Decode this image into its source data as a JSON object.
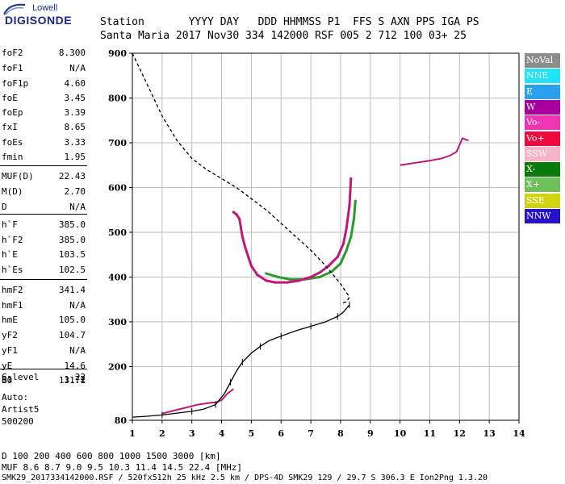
{
  "logo": {
    "top": "Lowell",
    "main": "DIGISONDE"
  },
  "header": {
    "line1": "Station       YYYY DAY   DDD HHMMSS P1  FFS S AXN PPS IGA PS",
    "line2": "Santa Maria 2017 Nov30 334 142000 RSF 005 2 712 100 03+ 25"
  },
  "params": [
    {
      "label": "foF2",
      "value": "8.300"
    },
    {
      "label": "foF1",
      "value": "N/A"
    },
    {
      "label": "foF1p",
      "value": "4.60"
    },
    {
      "label": "foE",
      "value": "3.45"
    },
    {
      "label": "foEp",
      "value": "3.39"
    },
    {
      "label": "fxI",
      "value": "8.65"
    },
    {
      "label": "foEs",
      "value": "3.33"
    },
    {
      "label": "fmin",
      "value": "1.95"
    },
    {
      "label": "MUF(D)",
      "value": "22.43"
    },
    {
      "label": "M(D)",
      "value": "2.70"
    },
    {
      "label": "D",
      "value": "N/A"
    },
    {
      "label": "h`F",
      "value": "385.0"
    },
    {
      "label": "h`F2",
      "value": "385.0"
    },
    {
      "label": "h`E",
      "value": "103.5"
    },
    {
      "label": "h`Es",
      "value": "102.5"
    },
    {
      "label": "hmF2",
      "value": "341.4"
    },
    {
      "label": "hmF1",
      "value": "N/A"
    },
    {
      "label": "hmE",
      "value": "105.0"
    },
    {
      "label": "yF2",
      "value": "104.7"
    },
    {
      "label": "yF1",
      "value": "N/A"
    },
    {
      "label": "yE",
      "value": "14.6"
    },
    {
      "label": "B0",
      "value": "131.1"
    },
    {
      "label": "B1",
      "value": "1.72"
    },
    {
      "label": "C-level",
      "value": "22"
    }
  ],
  "auto": {
    "line1": "Auto:",
    "line2": "Artist5",
    "line3": "500200"
  },
  "legend": [
    {
      "label": "NoVal",
      "color": "#8c8c8c",
      "text_color": "#ffffff"
    },
    {
      "label": "NNE",
      "color": "#22e3f5",
      "text_color": "#ffffff"
    },
    {
      "label": "E",
      "color": "#2aa0f0",
      "text_color": "#ffffff"
    },
    {
      "label": "W",
      "color": "#a8009f",
      "text_color": "#ffffff"
    },
    {
      "label": "Vo-",
      "color": "#f032b4",
      "text_color": "#ffffff"
    },
    {
      "label": "Vo+",
      "color": "#f00a3c",
      "text_color": "#ffffff"
    },
    {
      "label": "SSW",
      "color": "#f5b4c8",
      "text_color": "#ffffff"
    },
    {
      "label": "X-",
      "color": "#0a7a0a",
      "text_color": "#ffffff"
    },
    {
      "label": "X+",
      "color": "#6fc05a",
      "text_color": "#ffffff"
    },
    {
      "label": "SSE",
      "color": "#d2d214",
      "text_color": "#ffffff"
    },
    {
      "label": "NNW",
      "color": "#2814c8",
      "text_color": "#ffffff"
    }
  ],
  "footer": {
    "d_line": "D     100  200  400  600  800 1000 1500 3000 [km]",
    "muf_line": "MUF   8.6  8.7  9.0  9.5 10.3 11.4 14.5 22.4 [MHz]",
    "file_line": "SMK29_2017334142000.RSF / 520fx512h 25 kHz 2.5 km / DPS-4D SMK29 129 / 29.7 S 306.3 E Ion2Png 1.3.20"
  },
  "chart_data": {
    "type": "scatter",
    "xlim": [
      1,
      14
    ],
    "ylim": [
      80,
      900
    ],
    "x_ticks": [
      1,
      2,
      3,
      4,
      5,
      6,
      7,
      8,
      9,
      10,
      11,
      12,
      13,
      14
    ],
    "y_ticks": [
      80,
      200,
      300,
      400,
      500,
      600,
      700,
      800,
      900
    ],
    "grid": true,
    "colors": {
      "trace_o": "#c0187a",
      "trace_x": "#2a9a2a",
      "profile": "#000000",
      "grid": "#bfbfbf"
    },
    "profile": {
      "x": [
        1.0,
        1.5,
        2.0,
        2.5,
        3.0,
        3.4,
        3.8,
        4.1,
        4.3,
        4.5,
        4.7,
        5.0,
        5.3,
        5.6,
        6.0,
        6.5,
        7.0,
        7.5,
        7.9,
        8.1,
        8.3
      ],
      "y": [
        87,
        89,
        92,
        96,
        100,
        105,
        115,
        140,
        165,
        190,
        210,
        230,
        245,
        258,
        268,
        280,
        290,
        300,
        312,
        322,
        338
      ]
    },
    "profile_dashed": {
      "x": [
        1.0,
        1.5,
        2.0,
        2.5,
        3.0,
        3.5,
        4.0,
        4.5,
        5.0,
        5.5,
        6.0,
        6.5,
        7.0,
        7.5,
        8.0,
        8.3,
        8.2,
        8.0
      ],
      "y": [
        900,
        830,
        760,
        705,
        665,
        640,
        620,
        600,
        575,
        550,
        520,
        490,
        460,
        425,
        385,
        355,
        345,
        340
      ]
    },
    "f_trace_o": {
      "x": [
        4.4,
        4.5,
        4.6,
        4.65,
        4.7,
        4.8,
        4.9,
        5.0,
        5.2,
        5.5,
        5.8,
        6.2,
        6.6,
        7.0,
        7.3,
        7.6,
        7.9,
        8.1,
        8.2,
        8.3,
        8.35
      ],
      "y": [
        545,
        540,
        530,
        510,
        490,
        465,
        445,
        425,
        405,
        392,
        388,
        388,
        392,
        400,
        410,
        425,
        445,
        475,
        510,
        560,
        620
      ]
    },
    "f_trace_x": {
      "x": [
        5.5,
        5.9,
        6.3,
        6.8,
        7.3,
        7.7,
        8.0,
        8.2,
        8.35,
        8.45,
        8.5
      ],
      "y": [
        408,
        400,
        395,
        395,
        400,
        412,
        430,
        460,
        490,
        530,
        570
      ]
    },
    "e_trace": {
      "x": [
        2.0,
        2.3,
        2.6,
        2.9,
        3.2,
        3.5,
        3.8,
        4.0,
        4.2,
        4.4
      ],
      "y": [
        95,
        100,
        105,
        110,
        115,
        118,
        120,
        125,
        140,
        150
      ]
    },
    "upper_trace": {
      "x": [
        10.0,
        10.5,
        11.0,
        11.4,
        11.7,
        11.9,
        12.0,
        12.1,
        12.3
      ],
      "y": [
        650,
        655,
        660,
        665,
        672,
        680,
        695,
        710,
        705
      ]
    }
  }
}
